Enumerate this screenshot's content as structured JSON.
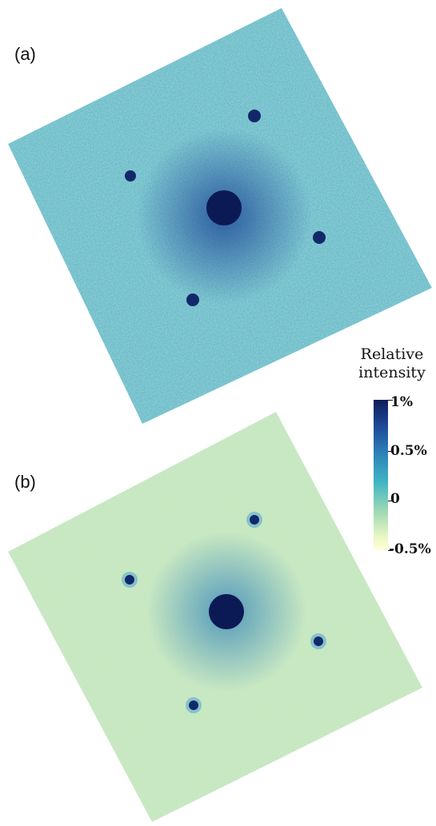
{
  "panels": [
    {
      "label": "(a)"
    },
    {
      "label": "(b)"
    }
  ],
  "colorbar": {
    "title_line1": "Relative",
    "title_line2": "intensity",
    "ticks": [
      "1%",
      "0.5%",
      "0",
      "-0.5%"
    ],
    "colors": [
      "#0e1d5c",
      "#2c7fb8",
      "#41b6c4",
      "#a1dab4",
      "#ffffd9"
    ]
  }
}
